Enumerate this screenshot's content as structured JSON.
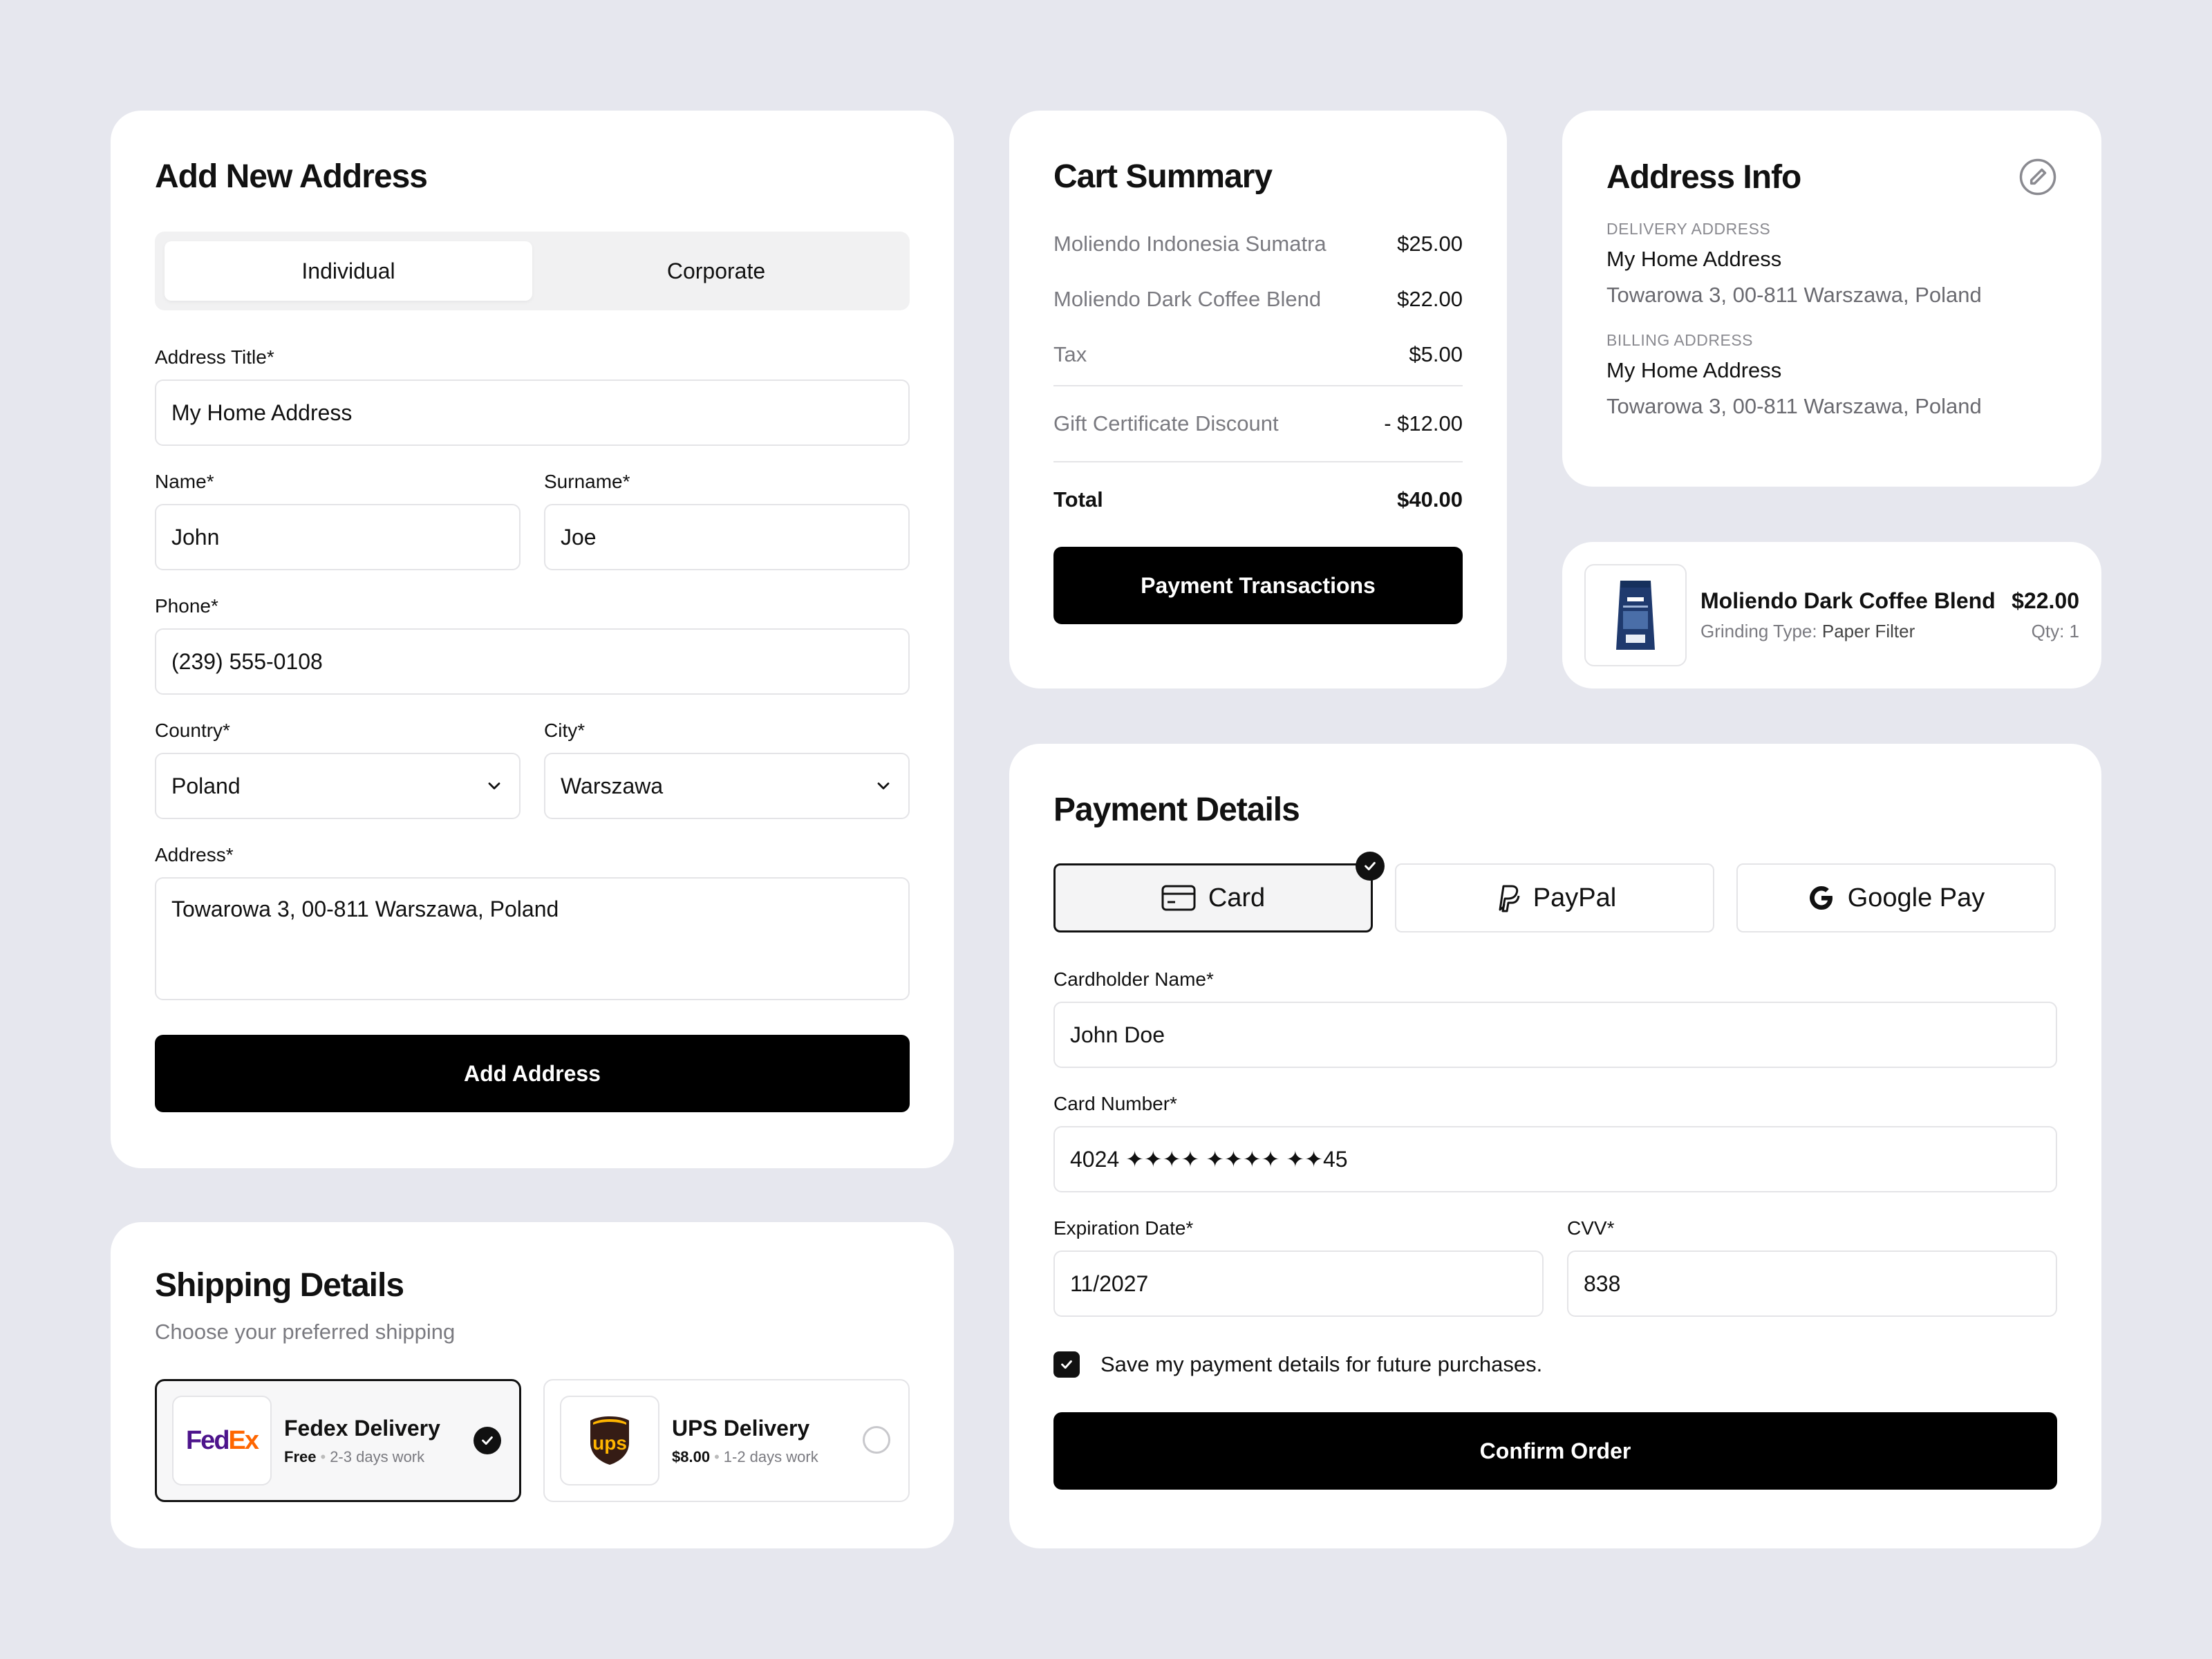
{
  "add_address": {
    "title": "Add New Address",
    "tabs": [
      "Individual",
      "Corporate"
    ],
    "address_title": {
      "label": "Address Title*",
      "value": "My Home Address"
    },
    "name": {
      "label": "Name*",
      "value": "John"
    },
    "surname": {
      "label": "Surname*",
      "value": "Joe"
    },
    "phone": {
      "label": "Phone*",
      "value": "(239) 555-0108"
    },
    "country": {
      "label": "Country*",
      "value": "Poland"
    },
    "city": {
      "label": "City*",
      "value": "Warszawa"
    },
    "address": {
      "label": "Address*",
      "value": "Towarowa 3, 00-811 Warszawa, Poland"
    },
    "button": "Add Address"
  },
  "shipping": {
    "title": "Shipping Details",
    "subtitle": "Choose your preferred shipping",
    "options": [
      {
        "logo": "FedEx",
        "name": "Fedex Delivery",
        "price": "Free",
        "days": "2-3 days work",
        "selected": true
      },
      {
        "logo": "ups",
        "name": "UPS Delivery",
        "price": "$8.00",
        "days": "1-2 days work",
        "selected": false
      }
    ]
  },
  "cart": {
    "title": "Cart Summary",
    "items": [
      {
        "name": "Moliendo Indonesia Sumatra",
        "price": "$25.00"
      },
      {
        "name": "Moliendo Dark Coffee Blend",
        "price": "$22.00"
      },
      {
        "name": "Tax",
        "price": "$5.00"
      }
    ],
    "discount": {
      "name": "Gift Certificate Discount",
      "price": "- $12.00"
    },
    "total": {
      "name": "Total",
      "price": "$40.00"
    },
    "button": "Payment Transactions"
  },
  "address_info": {
    "title": "Address Info",
    "delivery": {
      "caption": "DELIVERY ADDRESS",
      "name": "My Home Address",
      "address": "Towarowa 3, 00-811 Warszawa, Poland"
    },
    "billing": {
      "caption": "BILLING ADDRESS",
      "name": "My Home Address",
      "address": "Towarowa 3, 00-811 Warszawa, Poland"
    }
  },
  "product": {
    "name": "Moliendo Dark Coffee Blend",
    "price": "$22.00",
    "grinding_label": "Grinding Type:",
    "grinding_value": "Paper Filter",
    "qty": "Qty: 1"
  },
  "payment": {
    "title": "Payment Details",
    "methods": [
      {
        "label": "Card",
        "icon": "card-icon",
        "selected": true
      },
      {
        "label": "PayPal",
        "icon": "paypal-icon",
        "selected": false
      },
      {
        "label": "Google Pay",
        "icon": "google-icon",
        "selected": false
      }
    ],
    "cardholder": {
      "label": "Cardholder Name*",
      "value": "John Doe"
    },
    "card_number": {
      "label": "Card Number*",
      "value": "4024 ✦✦✦✦ ✦✦✦✦ ✦✦45"
    },
    "expiration": {
      "label": "Expiration Date*",
      "value": "11/2027"
    },
    "cvv": {
      "label": "CVV*",
      "value": "838"
    },
    "save_details": {
      "label": "Save my payment details for future purchases.",
      "checked": true
    },
    "button": "Confirm Order"
  },
  "colors": {
    "background": "#e6e7ee",
    "card": "#ffffff",
    "primary": "#000000",
    "fedex_purple": "#4d148c",
    "fedex_orange": "#ff6600",
    "ups_brown": "#351c15",
    "ups_gold": "#ffb500"
  }
}
